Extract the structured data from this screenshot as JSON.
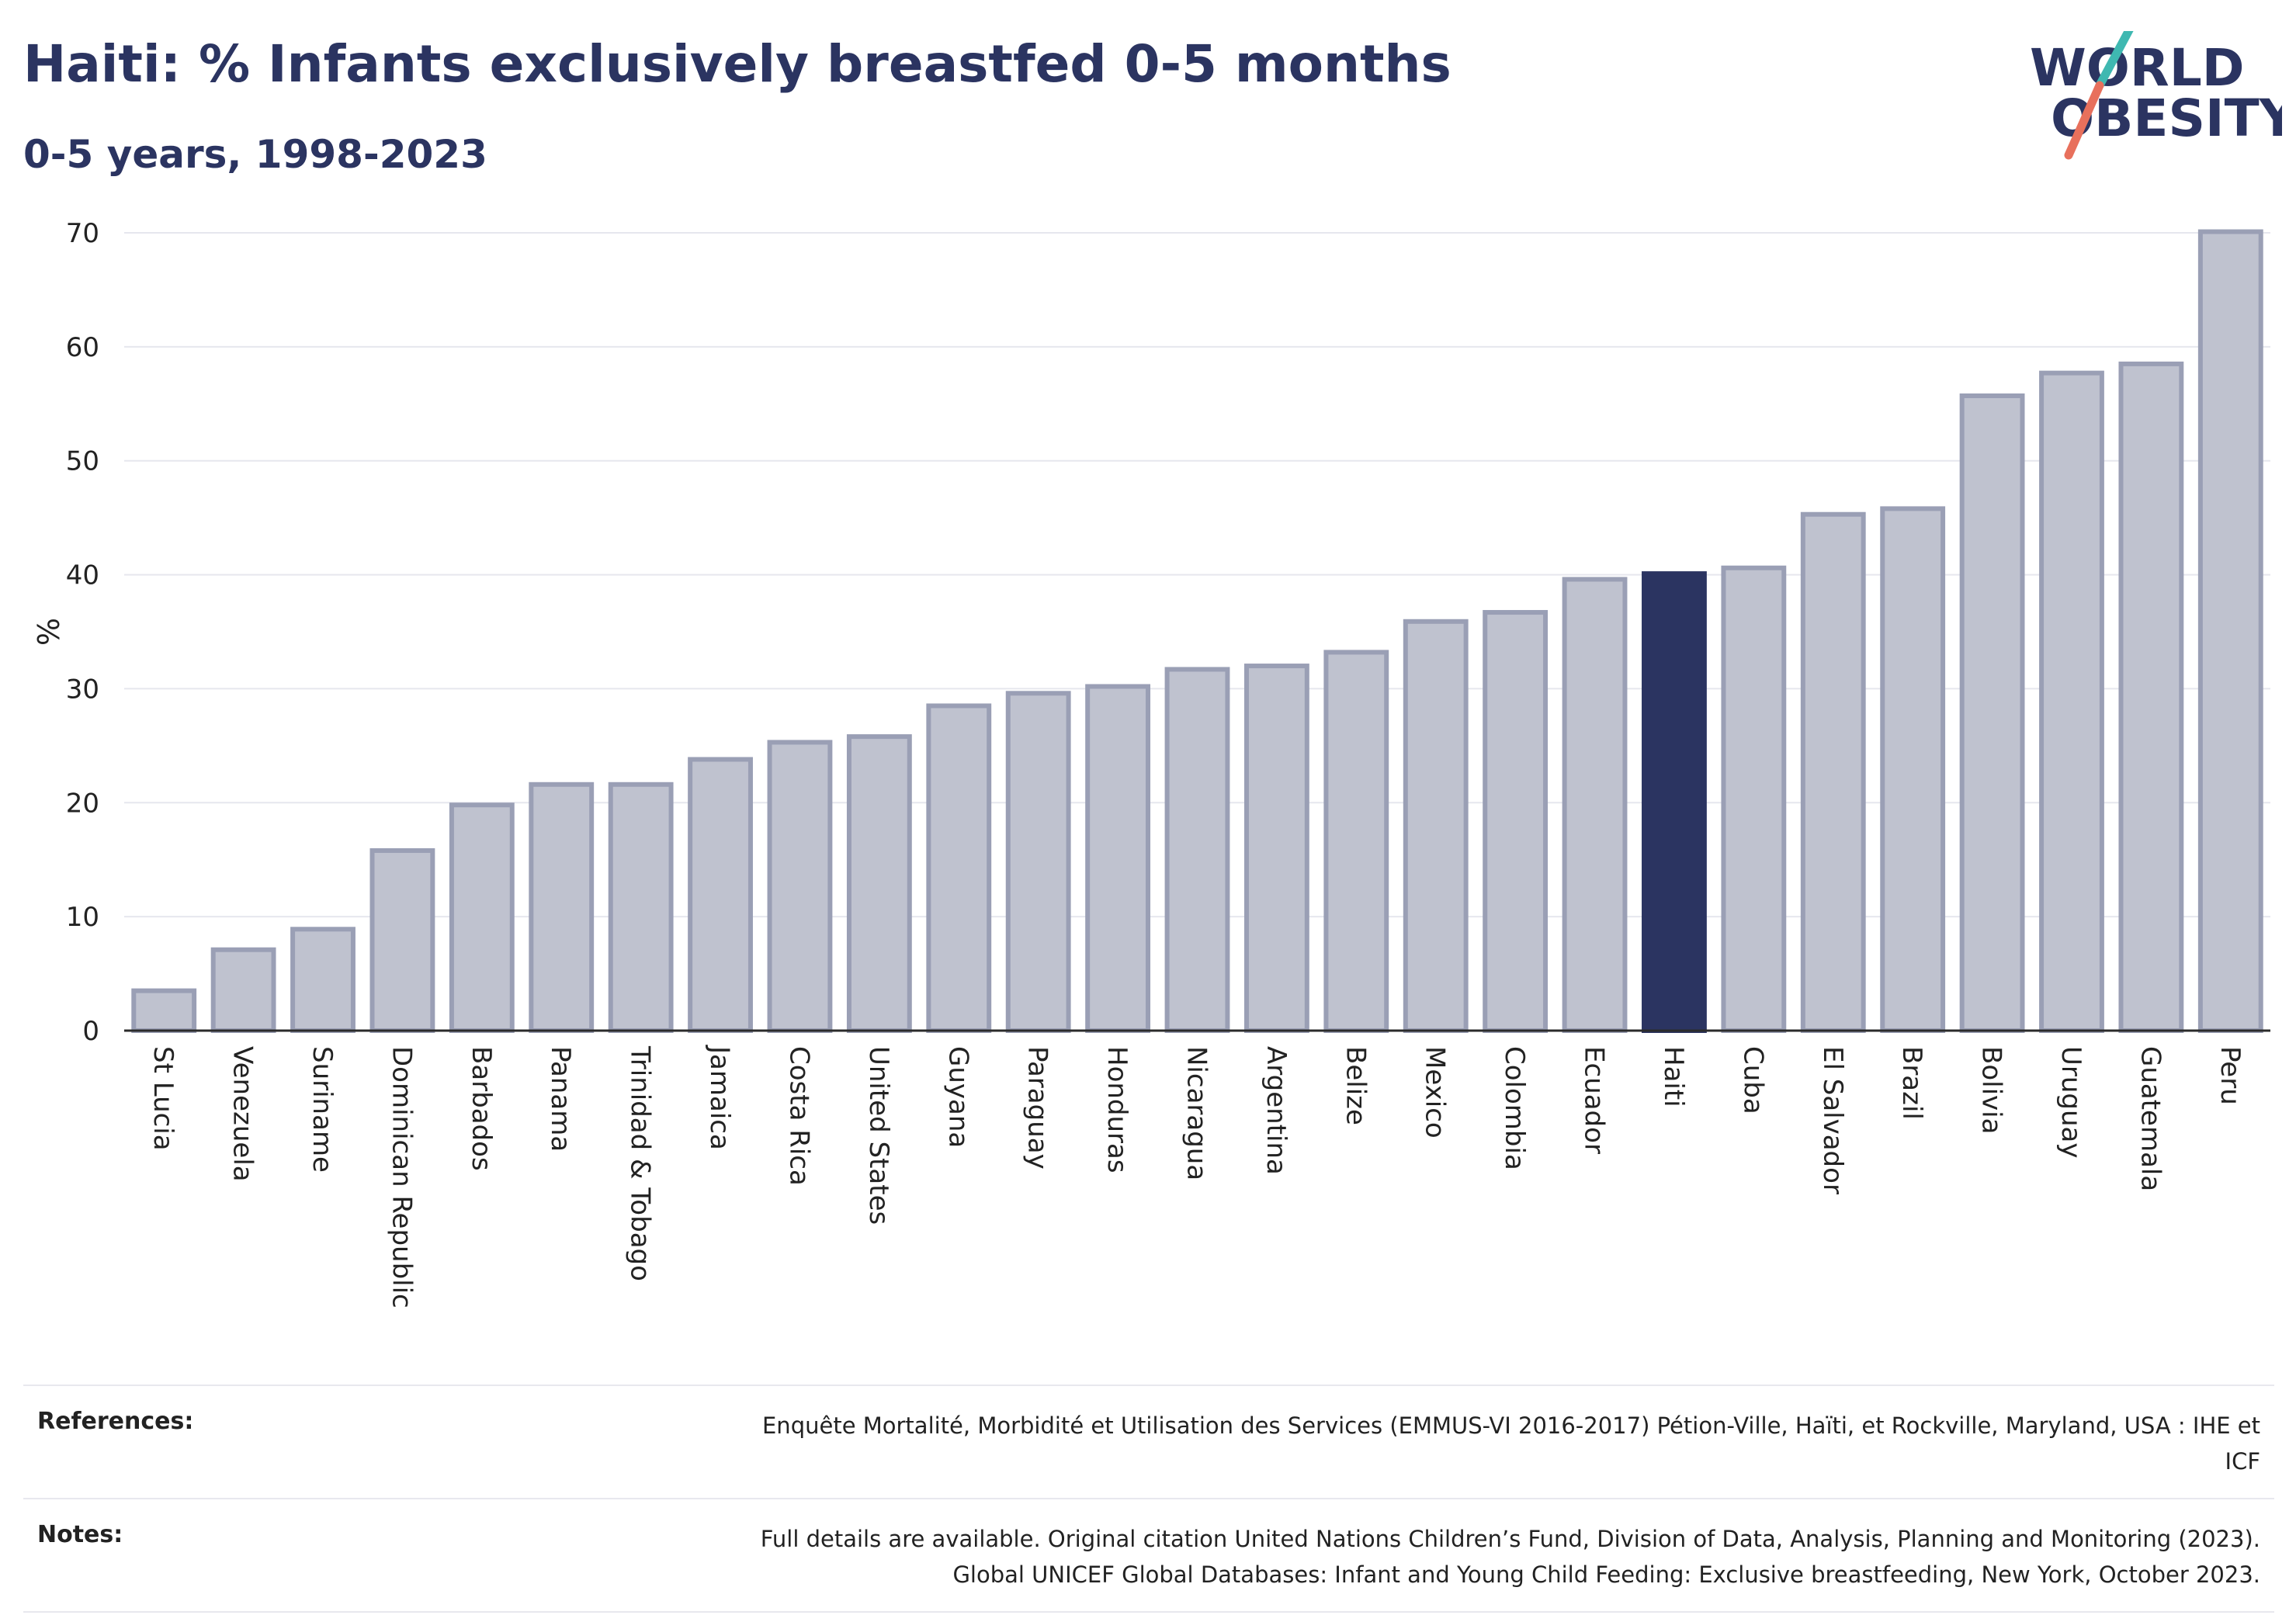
{
  "header": {
    "title": "Haiti: % Infants exclusively breastfed 0-5 months",
    "subtitle": "0-5 years, 1998-2023"
  },
  "logo": {
    "line1": "WORLD",
    "line2": "OBESITY",
    "colors": {
      "text": "#2b3461",
      "slash_top": "#3fb8b1",
      "slash_bottom": "#e8705c"
    }
  },
  "chart_data": {
    "type": "bar",
    "ylabel": "%",
    "xlabel": "",
    "ylim": [
      0,
      70
    ],
    "yticks": [
      0,
      10,
      20,
      30,
      40,
      50,
      60,
      70
    ],
    "grid": true,
    "legend": "none",
    "highlight": "Haiti",
    "colors": {
      "bar": "#bfc2cf",
      "bar_edge": "#9a9fb5",
      "highlight": "#2b3461"
    },
    "categories": [
      "St Lucia",
      "Venezuela",
      "Suriname",
      "Dominican Republic",
      "Barbados",
      "Panama",
      "Trinidad & Tobago",
      "Jamaica",
      "Costa Rica",
      "United States",
      "Guyana",
      "Paraguay",
      "Honduras",
      "Nicaragua",
      "Argentina",
      "Belize",
      "Mexico",
      "Colombia",
      "Ecuador",
      "Haiti",
      "Cuba",
      "El Salvador",
      "Brazil",
      "Bolivia",
      "Uruguay",
      "Guatemala",
      "Peru"
    ],
    "values": [
      3.5,
      7.1,
      8.9,
      15.8,
      19.8,
      21.6,
      21.6,
      23.8,
      25.3,
      25.8,
      28.5,
      29.6,
      30.2,
      31.7,
      32.0,
      33.2,
      35.9,
      36.7,
      39.6,
      40.1,
      40.6,
      45.3,
      45.8,
      55.7,
      57.7,
      58.5,
      70.1
    ]
  },
  "references": [
    {
      "key": "References:",
      "lines": [
        "Enquête Mortalité, Morbidité et Utilisation des Services (EMMUS-VI 2016-2017) Pétion-Ville, Haïti, et Rockville, Maryland, USA : IHE et",
        "ICF"
      ]
    },
    {
      "key": "Notes:",
      "lines": [
        "Full details are available. Original citation United Nations Children’s Fund, Division of Data, Analysis, Planning and Monitoring (2023).",
        "Global UNICEF Global Databases: Infant and Young Child Feeding: Exclusive breastfeeding, New York, October 2023."
      ]
    }
  ]
}
